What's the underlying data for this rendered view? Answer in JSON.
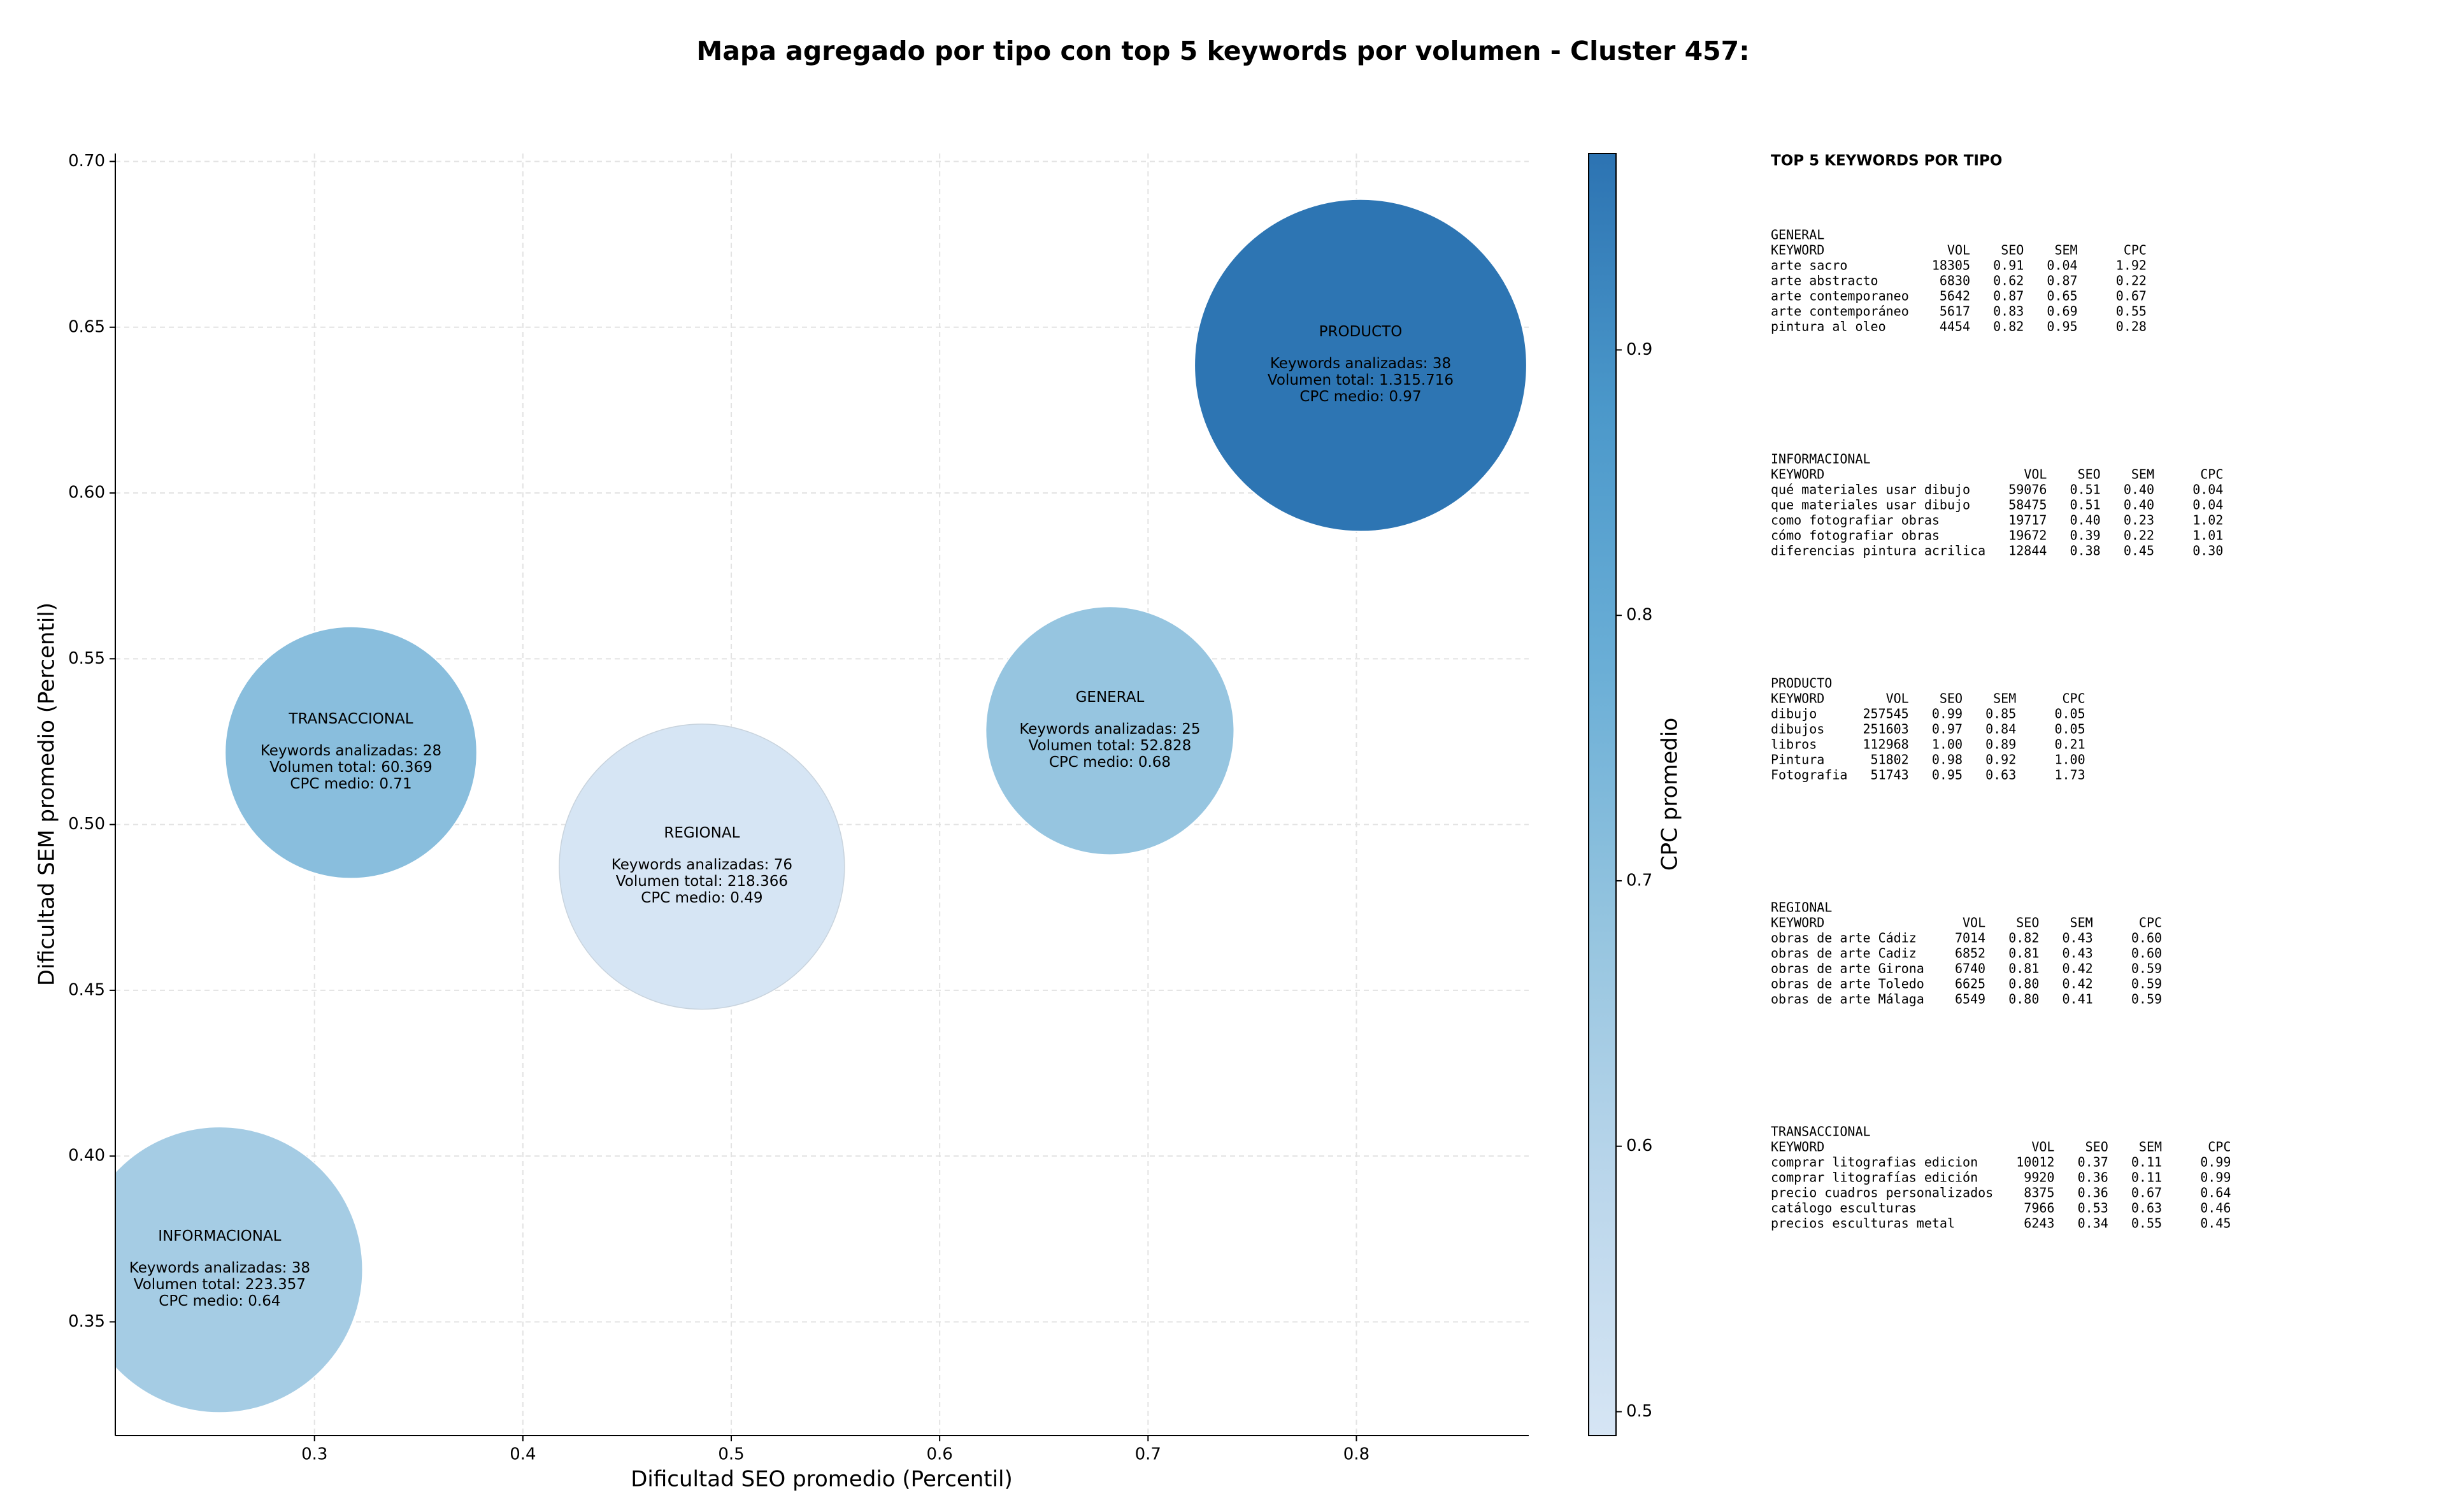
{
  "chart_data": {
    "type": "bubble",
    "title": "Mapa agregado por tipo con top 5 keywords por volumen - Cluster 457:",
    "x_label": "Dificultad SEO promedio (Percentil)",
    "y_label": "Dificultad SEM promedio (Percentil)",
    "xlim": [
      0.2044,
      0.8827
    ],
    "ylim": [
      0.3157,
      0.7024
    ],
    "xticks": [
      0.3,
      0.4,
      0.5,
      0.6,
      0.7,
      0.8
    ],
    "yticks": [
      {
        "value": 0.35,
        "label": "0.35"
      },
      {
        "value": 0.4,
        "label": "0.40"
      },
      {
        "value": 0.45,
        "label": "0.45"
      },
      {
        "value": 0.5,
        "label": "0.50"
      },
      {
        "value": 0.55,
        "label": "0.55"
      },
      {
        "value": 0.6,
        "label": "0.60"
      },
      {
        "value": 0.65,
        "label": "0.65"
      },
      {
        "value": 0.7,
        "label": "0.70"
      }
    ],
    "grid": true,
    "colormap": [
      "#d6e5f4",
      "#bad6eb",
      "#94c4df",
      "#6aaed6",
      "#4b98ca",
      "#2c73b2"
    ],
    "colorbar": {
      "label": "CPC promedio",
      "lim": [
        0.491,
        0.974
      ],
      "ticks": [
        0.5,
        0.6,
        0.7,
        0.8,
        0.9
      ]
    },
    "points": [
      {
        "name": "PRODUCTO",
        "x": 0.802,
        "y": 0.6385,
        "volume": 1315716,
        "cpc": 0.97,
        "text": [
          "Keywords analizadas: 38",
          "Volumen total: 1.315.716",
          "CPC medio: 0.97"
        ]
      },
      {
        "name": "GENERAL",
        "x": 0.6817,
        "y": 0.5283,
        "volume": 52828,
        "cpc": 0.68,
        "text": [
          "Keywords analizadas: 25",
          "Volumen total: 52.828",
          "CPC medio: 0.68"
        ]
      },
      {
        "name": "REGIONAL",
        "x": 0.4859,
        "y": 0.4873,
        "volume": 218366,
        "cpc": 0.49,
        "text": [
          "Keywords analizadas: 76",
          "Volumen total: 218.366",
          "CPC medio: 0.49"
        ]
      },
      {
        "name": "TRANSACCIONAL",
        "x": 0.3175,
        "y": 0.5217,
        "volume": 60369,
        "cpc": 0.71,
        "text": [
          "Keywords analizadas: 28",
          "Volumen total: 60.369",
          "CPC medio: 0.71"
        ]
      },
      {
        "name": "INFORMACIONAL",
        "x": 0.2545,
        "y": 0.3657,
        "volume": 223357,
        "cpc": 0.64,
        "text": [
          "Keywords analizadas: 38",
          "Volumen total: 223.357",
          "CPC medio: 0.64"
        ]
      }
    ]
  },
  "side_panel": {
    "title": "TOP 5 KEYWORDS POR TIPO",
    "tables": [
      {
        "name": "GENERAL",
        "columns": [
          "KEYWORD",
          "VOL",
          "SEO",
          "SEM",
          "CPC"
        ],
        "rows": [
          [
            "arte sacro",
            "18305",
            "0.91",
            "0.04",
            "1.92"
          ],
          [
            "arte abstracto",
            "6830",
            "0.62",
            "0.87",
            "0.22"
          ],
          [
            "arte contemporaneo",
            "5642",
            "0.87",
            "0.65",
            "0.67"
          ],
          [
            "arte contemporáneo",
            "5617",
            "0.83",
            "0.69",
            "0.55"
          ],
          [
            "pintura al oleo",
            "4454",
            "0.82",
            "0.95",
            "0.28"
          ]
        ]
      },
      {
        "name": "INFORMACIONAL",
        "columns": [
          "KEYWORD",
          "VOL",
          "SEO",
          "SEM",
          "CPC"
        ],
        "rows": [
          [
            "qué materiales usar dibujo",
            "59076",
            "0.51",
            "0.40",
            "0.04"
          ],
          [
            "que materiales usar dibujo",
            "58475",
            "0.51",
            "0.40",
            "0.04"
          ],
          [
            "como fotografiar obras",
            "19717",
            "0.40",
            "0.23",
            "1.02"
          ],
          [
            "cómo fotografiar obras",
            "19672",
            "0.39",
            "0.22",
            "1.01"
          ],
          [
            "diferencias pintura acrilica",
            "12844",
            "0.38",
            "0.45",
            "0.30"
          ]
        ]
      },
      {
        "name": "PRODUCTO",
        "columns": [
          "KEYWORD",
          "VOL",
          "SEO",
          "SEM",
          "CPC"
        ],
        "rows": [
          [
            "dibujo",
            "257545",
            "0.99",
            "0.85",
            "0.05"
          ],
          [
            "dibujos",
            "251603",
            "0.97",
            "0.84",
            "0.05"
          ],
          [
            "libros",
            "112968",
            "1.00",
            "0.89",
            "0.21"
          ],
          [
            "Pintura",
            "51802",
            "0.98",
            "0.92",
            "1.00"
          ],
          [
            "Fotografia",
            "51743",
            "0.95",
            "0.63",
            "1.73"
          ]
        ]
      },
      {
        "name": "REGIONAL",
        "columns": [
          "KEYWORD",
          "VOL",
          "SEO",
          "SEM",
          "CPC"
        ],
        "rows": [
          [
            "obras de arte Cádiz",
            "7014",
            "0.82",
            "0.43",
            "0.60"
          ],
          [
            "obras de arte Cadiz",
            "6852",
            "0.81",
            "0.43",
            "0.60"
          ],
          [
            "obras de arte Girona",
            "6740",
            "0.81",
            "0.42",
            "0.59"
          ],
          [
            "obras de arte Toledo",
            "6625",
            "0.80",
            "0.42",
            "0.59"
          ],
          [
            "obras de arte Málaga",
            "6549",
            "0.80",
            "0.41",
            "0.59"
          ]
        ]
      },
      {
        "name": "TRANSACCIONAL",
        "columns": [
          "KEYWORD",
          "VOL",
          "SEO",
          "SEM",
          "CPC"
        ],
        "rows": [
          [
            "comprar litografias edicion",
            "10012",
            "0.37",
            "0.11",
            "0.99"
          ],
          [
            "comprar litografías edición",
            "9920",
            "0.36",
            "0.11",
            "0.99"
          ],
          [
            "precio cuadros personalizados",
            "8375",
            "0.36",
            "0.67",
            "0.64"
          ],
          [
            "catálogo esculturas",
            "7966",
            "0.53",
            "0.63",
            "0.46"
          ],
          [
            "precios esculturas metal",
            "6243",
            "0.34",
            "0.55",
            "0.45"
          ]
        ]
      }
    ]
  }
}
